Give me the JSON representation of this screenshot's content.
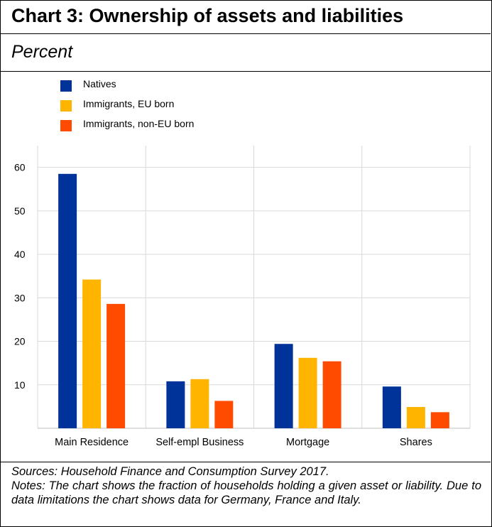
{
  "title": "Chart 3: Ownership of assets and liabilities",
  "subtitle": "Percent",
  "footer": {
    "sources": "Sources: Household Finance and Consumption Survey 2017.",
    "notes": "Notes: The chart shows the fraction of households holding a given asset or liability. Due to data limitations the chart shows data for Germany, France and Italy."
  },
  "chart_data": {
    "type": "bar",
    "title": "Chart 3: Ownership of assets and liabilities",
    "subtitle": "Percent",
    "xlabel": "",
    "ylabel": "",
    "categories": [
      "Main Residence",
      "Self-empl Business",
      "Mortgage",
      "Shares"
    ],
    "series": [
      {
        "name": "Natives",
        "color": "#003399",
        "values": [
          58.5,
          10.8,
          19.4,
          9.6
        ]
      },
      {
        "name": "Immigrants, EU born",
        "color": "#FFB400",
        "values": [
          34.2,
          11.3,
          16.2,
          4.9
        ]
      },
      {
        "name": "Immigrants, non-EU born",
        "color": "#FF4B00",
        "values": [
          28.6,
          6.3,
          15.4,
          3.7
        ]
      }
    ],
    "ylim": [
      0,
      65
    ],
    "yticks": [
      10,
      20,
      30,
      40,
      50,
      60
    ],
    "grid": true,
    "legend": "top-left"
  }
}
